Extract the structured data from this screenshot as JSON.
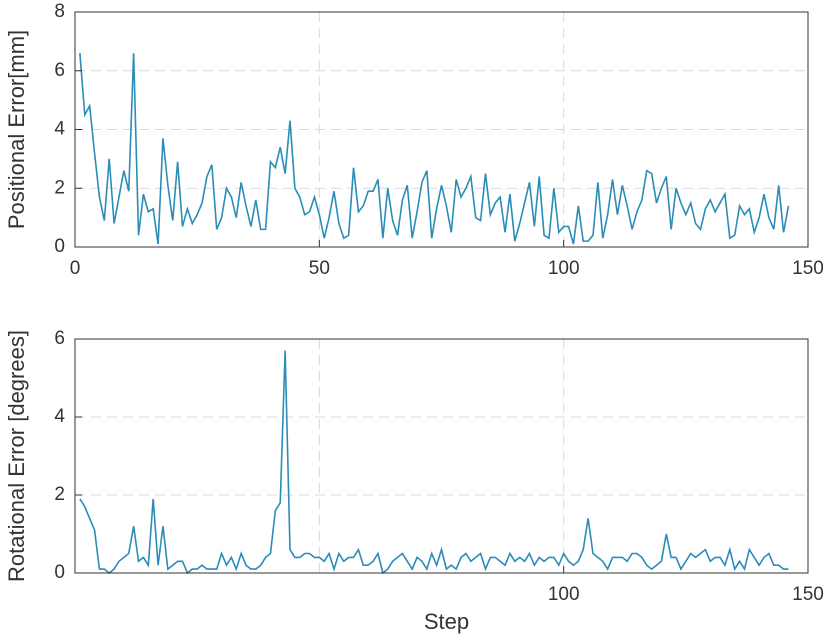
{
  "chart_data": [
    {
      "type": "line",
      "ylabel": "Positional Error[mm]",
      "x": [
        1,
        2,
        3,
        4,
        5,
        6,
        7,
        8,
        9,
        10,
        11,
        12,
        13,
        14,
        15,
        16,
        17,
        18,
        19,
        20,
        21,
        22,
        23,
        24,
        25,
        26,
        27,
        28,
        29,
        30,
        31,
        32,
        33,
        34,
        35,
        36,
        37,
        38,
        39,
        40,
        41,
        42,
        43,
        44,
        45,
        46,
        47,
        48,
        49,
        50,
        51,
        52,
        53,
        54,
        55,
        56,
        57,
        58,
        59,
        60,
        61,
        62,
        63,
        64,
        65,
        66,
        67,
        68,
        69,
        70,
        71,
        72,
        73,
        74,
        75,
        76,
        77,
        78,
        79,
        80,
        81,
        82,
        83,
        84,
        85,
        86,
        87,
        88,
        89,
        90,
        91,
        92,
        93,
        94,
        95,
        96,
        97,
        98,
        99,
        100,
        101,
        102,
        103,
        104,
        105,
        106,
        107,
        108,
        109,
        110,
        111,
        112,
        113,
        114,
        115,
        116,
        117,
        118,
        119,
        120,
        121,
        122,
        123,
        124,
        125,
        126,
        127,
        128,
        129,
        130,
        131,
        132,
        133,
        134,
        135,
        136,
        137,
        138,
        139,
        140,
        141,
        142,
        143,
        144,
        145,
        146
      ],
      "series": [
        {
          "color": "#2b8cb8",
          "values": [
            6.6,
            4.5,
            4.8,
            3.2,
            1.7,
            0.9,
            3.0,
            0.8,
            1.7,
            2.6,
            1.9,
            6.6,
            0.4,
            1.8,
            1.2,
            1.3,
            0.1,
            3.7,
            2.1,
            0.9,
            2.9,
            0.7,
            1.3,
            0.8,
            1.1,
            1.5,
            2.4,
            2.8,
            0.6,
            1.0,
            2.0,
            1.7,
            1.0,
            2.2,
            1.4,
            0.7,
            1.6,
            0.6,
            0.6,
            2.9,
            2.7,
            3.4,
            2.5,
            4.3,
            2.0,
            1.7,
            1.1,
            1.2,
            1.7,
            1.1,
            0.3,
            1.0,
            1.9,
            0.8,
            0.3,
            0.4,
            2.7,
            1.2,
            1.4,
            1.9,
            1.9,
            2.3,
            0.3,
            2.0,
            0.9,
            0.4,
            1.6,
            2.1,
            0.3,
            1.2,
            2.2,
            2.6,
            0.3,
            1.3,
            2.1,
            1.4,
            0.5,
            2.3,
            1.7,
            2.0,
            2.4,
            1.0,
            0.9,
            2.5,
            1.1,
            1.5,
            1.7,
            0.5,
            1.8,
            0.2,
            0.8,
            1.5,
            2.2,
            0.7,
            2.4,
            0.4,
            0.3,
            2.0,
            0.5,
            0.7,
            0.7,
            0.1,
            1.4,
            0.2,
            0.2,
            0.4,
            2.2,
            0.3,
            1.1,
            2.3,
            1.1,
            2.1,
            1.4,
            0.6,
            1.2,
            1.6,
            2.6,
            2.5,
            1.5,
            2.0,
            2.4,
            0.6,
            2.0,
            1.5,
            1.1,
            1.5,
            0.8,
            0.6,
            1.3,
            1.6,
            1.2,
            1.5,
            1.8,
            0.3,
            0.4,
            1.4,
            1.1,
            1.3,
            0.5,
            1.0,
            1.8,
            1.0,
            0.6,
            2.1,
            0.5,
            1.4
          ]
        }
      ],
      "xlim": [
        0,
        150
      ],
      "xticks": [
        0,
        50,
        100,
        150
      ],
      "xgrid": [
        50,
        100
      ],
      "ylim": [
        0,
        8
      ],
      "yticks": [
        0,
        2,
        4,
        6,
        8
      ],
      "ygrid": [
        2,
        4,
        6
      ]
    },
    {
      "type": "line",
      "ylabel": "Rotational Error [degrees]",
      "xlabel": "Step",
      "x": [
        1,
        2,
        3,
        4,
        5,
        6,
        7,
        8,
        9,
        10,
        11,
        12,
        13,
        14,
        15,
        16,
        17,
        18,
        19,
        20,
        21,
        22,
        23,
        24,
        25,
        26,
        27,
        28,
        29,
        30,
        31,
        32,
        33,
        34,
        35,
        36,
        37,
        38,
        39,
        40,
        41,
        42,
        43,
        44,
        45,
        46,
        47,
        48,
        49,
        50,
        51,
        52,
        53,
        54,
        55,
        56,
        57,
        58,
        59,
        60,
        61,
        62,
        63,
        64,
        65,
        66,
        67,
        68,
        69,
        70,
        71,
        72,
        73,
        74,
        75,
        76,
        77,
        78,
        79,
        80,
        81,
        82,
        83,
        84,
        85,
        86,
        87,
        88,
        89,
        90,
        91,
        92,
        93,
        94,
        95,
        96,
        97,
        98,
        99,
        100,
        101,
        102,
        103,
        104,
        105,
        106,
        107,
        108,
        109,
        110,
        111,
        112,
        113,
        114,
        115,
        116,
        117,
        118,
        119,
        120,
        121,
        122,
        123,
        124,
        125,
        126,
        127,
        128,
        129,
        130,
        131,
        132,
        133,
        134,
        135,
        136,
        137,
        138,
        139,
        140,
        141,
        142,
        143,
        144,
        145,
        146
      ],
      "series": [
        {
          "color": "#2b8cb8",
          "values": [
            1.9,
            1.7,
            1.4,
            1.1,
            0.1,
            0.1,
            0.0,
            0.1,
            0.3,
            0.4,
            0.5,
            1.2,
            0.3,
            0.4,
            0.2,
            1.9,
            0.2,
            1.2,
            0.1,
            0.2,
            0.3,
            0.3,
            0.0,
            0.1,
            0.1,
            0.2,
            0.1,
            0.1,
            0.1,
            0.5,
            0.2,
            0.4,
            0.1,
            0.5,
            0.2,
            0.1,
            0.1,
            0.2,
            0.4,
            0.5,
            1.6,
            1.8,
            5.7,
            0.6,
            0.4,
            0.4,
            0.5,
            0.5,
            0.4,
            0.4,
            0.3,
            0.5,
            0.1,
            0.5,
            0.3,
            0.4,
            0.4,
            0.6,
            0.2,
            0.2,
            0.3,
            0.5,
            0.0,
            0.1,
            0.3,
            0.4,
            0.5,
            0.3,
            0.1,
            0.4,
            0.3,
            0.1,
            0.5,
            0.2,
            0.6,
            0.1,
            0.2,
            0.1,
            0.4,
            0.5,
            0.3,
            0.4,
            0.5,
            0.1,
            0.4,
            0.4,
            0.3,
            0.2,
            0.5,
            0.3,
            0.4,
            0.3,
            0.5,
            0.2,
            0.4,
            0.3,
            0.4,
            0.4,
            0.2,
            0.5,
            0.3,
            0.2,
            0.3,
            0.6,
            1.4,
            0.5,
            0.4,
            0.3,
            0.1,
            0.4,
            0.4,
            0.4,
            0.3,
            0.5,
            0.5,
            0.4,
            0.2,
            0.1,
            0.2,
            0.3,
            1.0,
            0.4,
            0.4,
            0.1,
            0.3,
            0.5,
            0.4,
            0.5,
            0.6,
            0.3,
            0.4,
            0.4,
            0.2,
            0.6,
            0.1,
            0.3,
            0.1,
            0.6,
            0.4,
            0.2,
            0.4,
            0.5,
            0.2,
            0.2,
            0.1,
            0.1
          ]
        }
      ],
      "xlim": [
        0,
        150
      ],
      "xticks": [
        100,
        150
      ],
      "xgrid": [
        50,
        100
      ],
      "ylim": [
        0,
        6
      ],
      "yticks": [
        0,
        2,
        4,
        6
      ],
      "ygrid": [
        2,
        4
      ]
    }
  ]
}
